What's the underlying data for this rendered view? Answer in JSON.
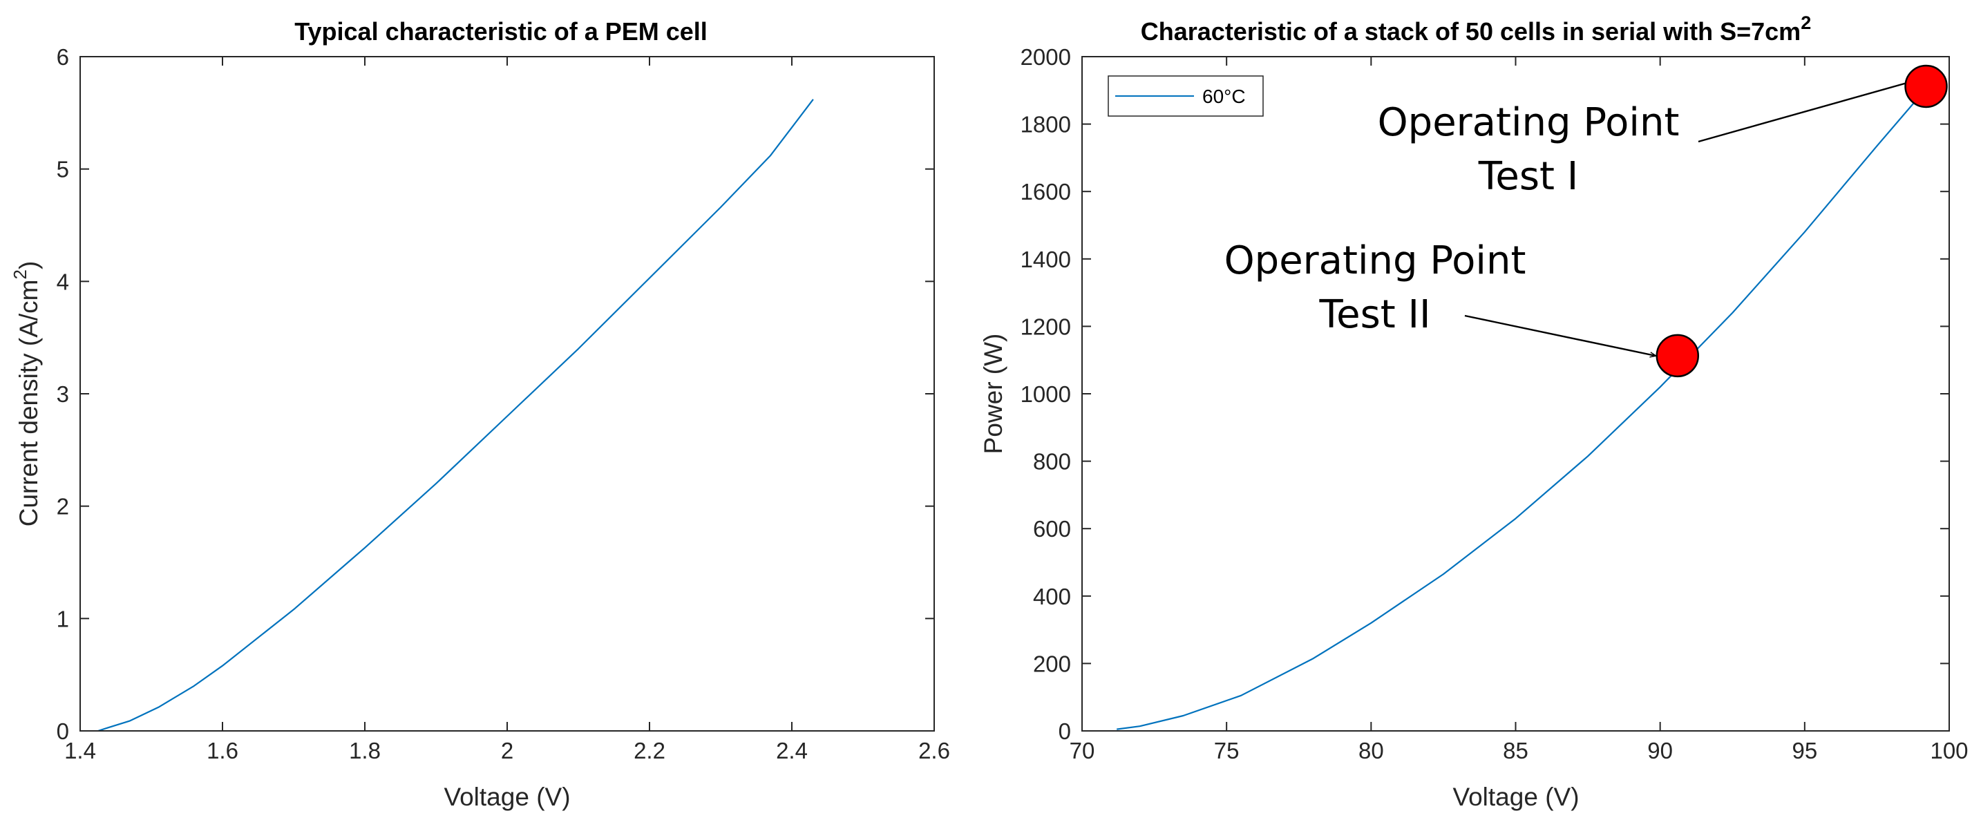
{
  "chart_data": [
    {
      "type": "line",
      "title": "Typical characteristic of a PEM cell",
      "xlabel": "Voltage (V)",
      "ylabel": "Current density (A/cm",
      "ylabel_sup": "2",
      "ylabel_end": ")",
      "xlim": [
        1.4,
        2.6
      ],
      "ylim": [
        0,
        6
      ],
      "xticks": [
        1.4,
        1.6,
        1.8,
        2.0,
        2.2,
        2.4,
        2.6
      ],
      "xtick_labels": [
        "1.4",
        "1.6",
        "1.8",
        "2",
        "2.2",
        "2.4",
        "2.6"
      ],
      "yticks": [
        0,
        1,
        2,
        3,
        4,
        5,
        6
      ],
      "ytick_labels": [
        "0",
        "1",
        "2",
        "3",
        "4",
        "5",
        "6"
      ],
      "grid": false,
      "color": "#0072BD",
      "series": [
        {
          "name": "PEM cell",
          "x": [
            1.425,
            1.44,
            1.47,
            1.51,
            1.56,
            1.6,
            1.7,
            1.8,
            1.9,
            2.0,
            2.1,
            2.2,
            2.3,
            2.37,
            2.43
          ],
          "y": [
            0.0,
            0.03,
            0.09,
            0.21,
            0.4,
            0.58,
            1.08,
            1.63,
            2.2,
            2.8,
            3.4,
            4.03,
            4.66,
            5.12,
            5.62
          ]
        }
      ]
    },
    {
      "type": "line",
      "title": "Characteristic of a stack of 50 cells in serial with S=7cm",
      "title_sup": "2",
      "xlabel": "Voltage (V)",
      "ylabel": "Power (W)",
      "xlim": [
        70,
        100
      ],
      "ylim": [
        0,
        2000
      ],
      "xticks": [
        70,
        75,
        80,
        85,
        90,
        95,
        100
      ],
      "xtick_labels": [
        "70",
        "75",
        "80",
        "85",
        "90",
        "95",
        "100"
      ],
      "yticks": [
        0,
        200,
        400,
        600,
        800,
        1000,
        1200,
        1400,
        1600,
        1800,
        2000
      ],
      "ytick_labels": [
        "0",
        "200",
        "400",
        "600",
        "800",
        "1000",
        "1200",
        "1400",
        "1600",
        "1800",
        "2000"
      ],
      "grid": false,
      "legend": {
        "position": "top-left",
        "entries": [
          "60°C"
        ]
      },
      "color": "#0072BD",
      "series": [
        {
          "name": "60°C",
          "x": [
            71.2,
            72.0,
            73.5,
            75.5,
            78.0,
            80.0,
            82.5,
            85.0,
            87.5,
            90.0,
            92.5,
            95.0,
            97.5,
            99.2
          ],
          "y": [
            5,
            14,
            45,
            105,
            215,
            320,
            465,
            630,
            815,
            1020,
            1240,
            1480,
            1735,
            1905
          ]
        }
      ],
      "markers": [
        {
          "x": 99.2,
          "y": 1912,
          "color": "#FF0000"
        },
        {
          "x": 90.6,
          "y": 1113,
          "color": "#FF0000"
        }
      ],
      "annotations": [
        {
          "lines": [
            "Operating Point",
            "Test I"
          ],
          "target_x": 99.2,
          "target_y": 1912
        },
        {
          "lines": [
            "Operating Point",
            "Test II"
          ],
          "target_x": 90.6,
          "target_y": 1113
        }
      ]
    }
  ]
}
